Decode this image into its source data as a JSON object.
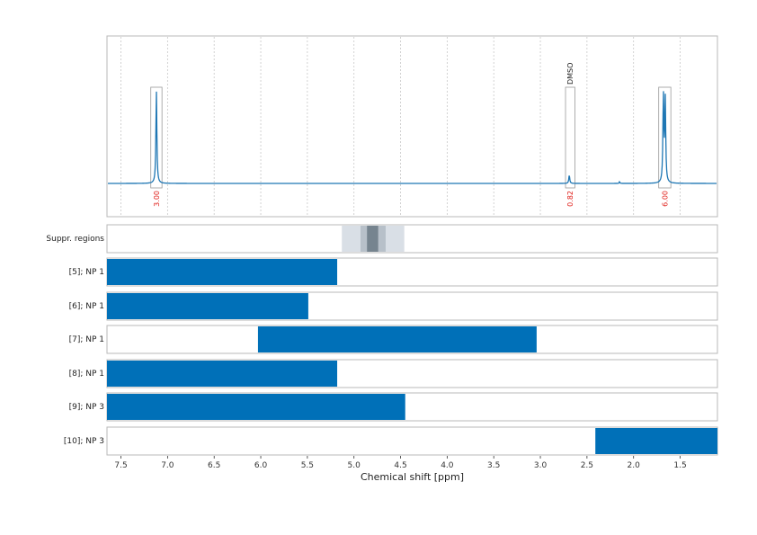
{
  "chart_data": {
    "type": "line",
    "xlabel": "Chemical shift [ppm]",
    "xlim": [
      7.65,
      1.1
    ],
    "x_reversed": true,
    "x_ticks": [
      7.5,
      7.0,
      6.5,
      6.0,
      5.5,
      5.0,
      4.5,
      4.0,
      3.5,
      3.0,
      2.5,
      2.0,
      1.5
    ],
    "x_tick_labels": [
      "7.5",
      "7.0",
      "6.5",
      "6.0",
      "5.5",
      "5.0",
      "4.5",
      "4.0",
      "3.5",
      "3.0",
      "2.5",
      "2.0",
      "1.5"
    ],
    "grid": "vertical dotted",
    "spectrum": {
      "color": "#1f77b4",
      "baseline": 0,
      "peaks": [
        {
          "ppm": 7.12,
          "height": 1.0,
          "width": 0.006
        },
        {
          "ppm": 2.69,
          "height": 0.09,
          "width": 0.006
        },
        {
          "ppm": 2.15,
          "height": 0.02,
          "width": 0.004
        },
        {
          "ppm": 1.68,
          "height": 0.95,
          "width": 0.006
        },
        {
          "ppm": 1.66,
          "height": 0.9,
          "width": 0.006
        }
      ]
    },
    "integration_regions": [
      {
        "from": 7.18,
        "to": 7.06,
        "integral": "3.00"
      },
      {
        "from": 2.73,
        "to": 2.63,
        "integral": "0.82",
        "annotation": "DMSO"
      },
      {
        "from": 1.73,
        "to": 1.6,
        "integral": "6.00"
      }
    ],
    "suppression_regions": {
      "label": "Suppr. regions",
      "bands": [
        {
          "from": 5.13,
          "to": 4.46,
          "shade": "#d9dfe6"
        },
        {
          "from": 4.93,
          "to": 4.66,
          "shade": "#b7c0c9"
        },
        {
          "from": 4.86,
          "to": 4.74,
          "shade": "#76848f"
        }
      ]
    },
    "noise_ranges": {
      "color": "#0070b8",
      "rows": [
        {
          "label": "[5]; NP 1",
          "from": 7.65,
          "to": 5.18
        },
        {
          "label": "[6]; NP 1",
          "from": 7.65,
          "to": 5.49
        },
        {
          "label": "[7]; NP 1",
          "from": 6.03,
          "to": 3.04
        },
        {
          "label": "[8]; NP 1",
          "from": 7.65,
          "to": 5.18
        },
        {
          "label": "[9]; NP 3",
          "from": 7.65,
          "to": 4.45
        },
        {
          "label": "[10]; NP 3",
          "from": 2.41,
          "to": 1.1
        }
      ]
    }
  }
}
